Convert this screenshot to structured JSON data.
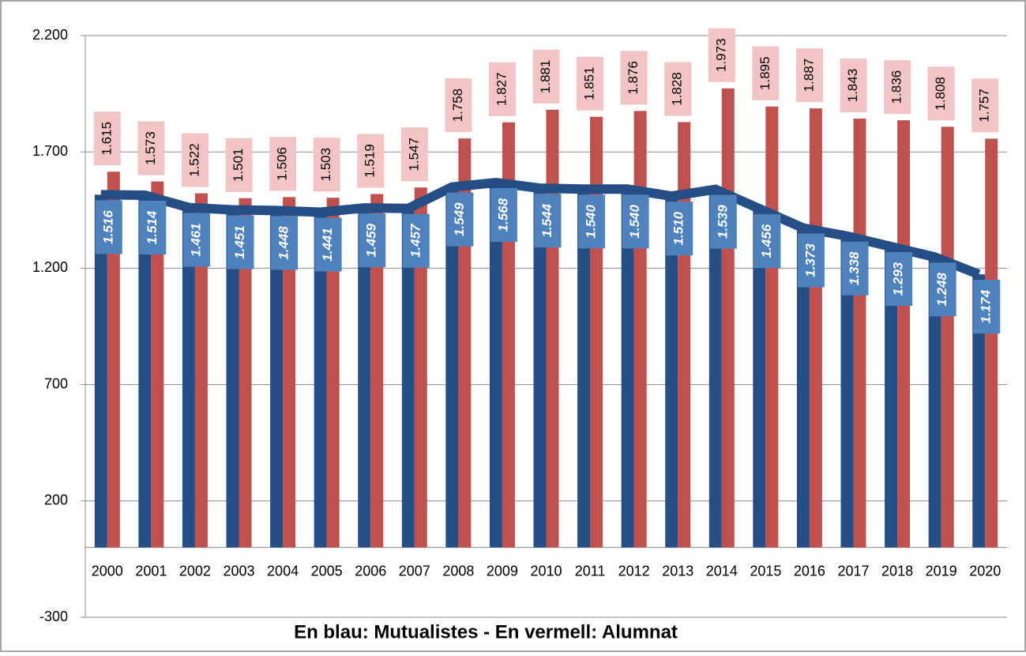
{
  "chart_data": {
    "type": "bar",
    "title": "En blau: Mutualistes  -  En vermell: Alumnat",
    "categories": [
      "2000",
      "2001",
      "2002",
      "2003",
      "2004",
      "2005",
      "2006",
      "2007",
      "2008",
      "2009",
      "2010",
      "2011",
      "2012",
      "2013",
      "2014",
      "2015",
      "2016",
      "2017",
      "2018",
      "2019",
      "2020"
    ],
    "series": [
      {
        "color": "#254e85",
        "label_color": "#4f81bd",
        "values": [
          1516,
          1514,
          1461,
          1451,
          1448,
          1441,
          1459,
          1457,
          1549,
          1568,
          1544,
          1540,
          1540,
          1510,
          1539,
          1456,
          1373,
          1338,
          1293,
          1248,
          1174
        ],
        "value_labels": [
          "1.516",
          "1.514",
          "1.461",
          "1.451",
          "1.448",
          "1.441",
          "1.459",
          "1.457",
          "1.549",
          "1.568",
          "1.544",
          "1.540",
          "1.540",
          "1.510",
          "1.539",
          "1.456",
          "1.373",
          "1.338",
          "1.293",
          "1.248",
          "1.174"
        ]
      },
      {
        "color": "#c0504d",
        "label_color": "#f2c4c4",
        "values": [
          1615,
          1573,
          1522,
          1501,
          1506,
          1503,
          1519,
          1547,
          1758,
          1827,
          1881,
          1851,
          1876,
          1828,
          1973,
          1895,
          1887,
          1843,
          1836,
          1808,
          1757
        ],
        "value_labels": [
          "1.615",
          "1.573",
          "1.522",
          "1.501",
          "1.506",
          "1.503",
          "1.519",
          "1.547",
          "1.758",
          "1.827",
          "1.881",
          "1.851",
          "1.876",
          "1.828",
          "1.973",
          "1.895",
          "1.887",
          "1.843",
          "1.836",
          "1.808",
          "1.757"
        ]
      }
    ],
    "ylim": [
      -300,
      2200
    ],
    "yticks": [
      -300,
      200,
      {
        "value": 700,
        "label": "700"
      },
      {
        "value": 1200,
        "label": "1.200"
      },
      {
        "value": 1700,
        "label": "1.700"
      },
      {
        "value": 2200,
        "label": "2.200"
      }
    ],
    "grid": true
  }
}
